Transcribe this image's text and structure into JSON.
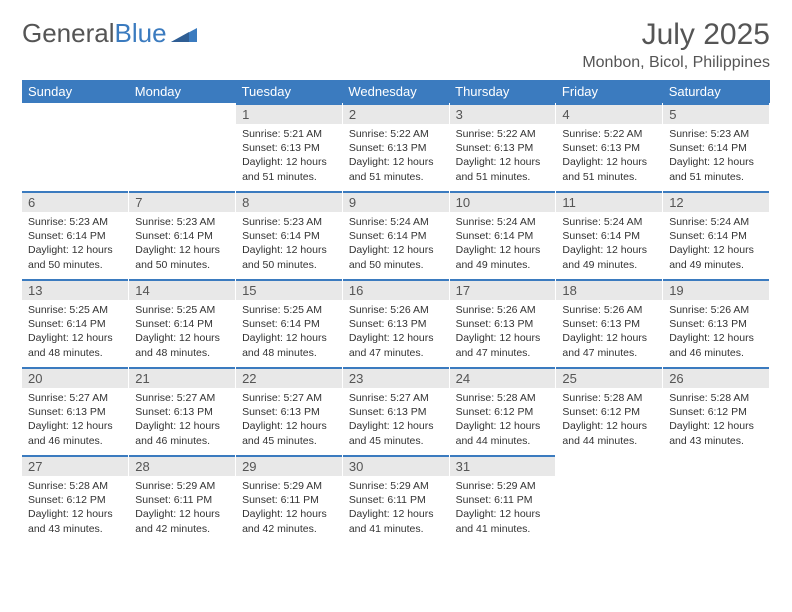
{
  "brand": {
    "text1": "General",
    "text2": "Blue"
  },
  "title": "July 2025",
  "location": "Monbon, Bicol, Philippines",
  "colors": {
    "header_bg": "#3b7bbf",
    "header_fg": "#ffffff",
    "daynum_bg": "#e8e8e8",
    "border_top": "#3b7bbf",
    "text": "#333333"
  },
  "weekdays": [
    "Sunday",
    "Monday",
    "Tuesday",
    "Wednesday",
    "Thursday",
    "Friday",
    "Saturday"
  ],
  "weeks": [
    [
      null,
      null,
      {
        "n": "1",
        "sr": "5:21 AM",
        "ss": "6:13 PM",
        "dl": "12 hours and 51 minutes."
      },
      {
        "n": "2",
        "sr": "5:22 AM",
        "ss": "6:13 PM",
        "dl": "12 hours and 51 minutes."
      },
      {
        "n": "3",
        "sr": "5:22 AM",
        "ss": "6:13 PM",
        "dl": "12 hours and 51 minutes."
      },
      {
        "n": "4",
        "sr": "5:22 AM",
        "ss": "6:13 PM",
        "dl": "12 hours and 51 minutes."
      },
      {
        "n": "5",
        "sr": "5:23 AM",
        "ss": "6:14 PM",
        "dl": "12 hours and 51 minutes."
      }
    ],
    [
      {
        "n": "6",
        "sr": "5:23 AM",
        "ss": "6:14 PM",
        "dl": "12 hours and 50 minutes."
      },
      {
        "n": "7",
        "sr": "5:23 AM",
        "ss": "6:14 PM",
        "dl": "12 hours and 50 minutes."
      },
      {
        "n": "8",
        "sr": "5:23 AM",
        "ss": "6:14 PM",
        "dl": "12 hours and 50 minutes."
      },
      {
        "n": "9",
        "sr": "5:24 AM",
        "ss": "6:14 PM",
        "dl": "12 hours and 50 minutes."
      },
      {
        "n": "10",
        "sr": "5:24 AM",
        "ss": "6:14 PM",
        "dl": "12 hours and 49 minutes."
      },
      {
        "n": "11",
        "sr": "5:24 AM",
        "ss": "6:14 PM",
        "dl": "12 hours and 49 minutes."
      },
      {
        "n": "12",
        "sr": "5:24 AM",
        "ss": "6:14 PM",
        "dl": "12 hours and 49 minutes."
      }
    ],
    [
      {
        "n": "13",
        "sr": "5:25 AM",
        "ss": "6:14 PM",
        "dl": "12 hours and 48 minutes."
      },
      {
        "n": "14",
        "sr": "5:25 AM",
        "ss": "6:14 PM",
        "dl": "12 hours and 48 minutes."
      },
      {
        "n": "15",
        "sr": "5:25 AM",
        "ss": "6:14 PM",
        "dl": "12 hours and 48 minutes."
      },
      {
        "n": "16",
        "sr": "5:26 AM",
        "ss": "6:13 PM",
        "dl": "12 hours and 47 minutes."
      },
      {
        "n": "17",
        "sr": "5:26 AM",
        "ss": "6:13 PM",
        "dl": "12 hours and 47 minutes."
      },
      {
        "n": "18",
        "sr": "5:26 AM",
        "ss": "6:13 PM",
        "dl": "12 hours and 47 minutes."
      },
      {
        "n": "19",
        "sr": "5:26 AM",
        "ss": "6:13 PM",
        "dl": "12 hours and 46 minutes."
      }
    ],
    [
      {
        "n": "20",
        "sr": "5:27 AM",
        "ss": "6:13 PM",
        "dl": "12 hours and 46 minutes."
      },
      {
        "n": "21",
        "sr": "5:27 AM",
        "ss": "6:13 PM",
        "dl": "12 hours and 46 minutes."
      },
      {
        "n": "22",
        "sr": "5:27 AM",
        "ss": "6:13 PM",
        "dl": "12 hours and 45 minutes."
      },
      {
        "n": "23",
        "sr": "5:27 AM",
        "ss": "6:13 PM",
        "dl": "12 hours and 45 minutes."
      },
      {
        "n": "24",
        "sr": "5:28 AM",
        "ss": "6:12 PM",
        "dl": "12 hours and 44 minutes."
      },
      {
        "n": "25",
        "sr": "5:28 AM",
        "ss": "6:12 PM",
        "dl": "12 hours and 44 minutes."
      },
      {
        "n": "26",
        "sr": "5:28 AM",
        "ss": "6:12 PM",
        "dl": "12 hours and 43 minutes."
      }
    ],
    [
      {
        "n": "27",
        "sr": "5:28 AM",
        "ss": "6:12 PM",
        "dl": "12 hours and 43 minutes."
      },
      {
        "n": "28",
        "sr": "5:29 AM",
        "ss": "6:11 PM",
        "dl": "12 hours and 42 minutes."
      },
      {
        "n": "29",
        "sr": "5:29 AM",
        "ss": "6:11 PM",
        "dl": "12 hours and 42 minutes."
      },
      {
        "n": "30",
        "sr": "5:29 AM",
        "ss": "6:11 PM",
        "dl": "12 hours and 41 minutes."
      },
      {
        "n": "31",
        "sr": "5:29 AM",
        "ss": "6:11 PM",
        "dl": "12 hours and 41 minutes."
      },
      null,
      null
    ]
  ],
  "labels": {
    "sunrise": "Sunrise: ",
    "sunset": "Sunset: ",
    "daylight": "Daylight: "
  }
}
